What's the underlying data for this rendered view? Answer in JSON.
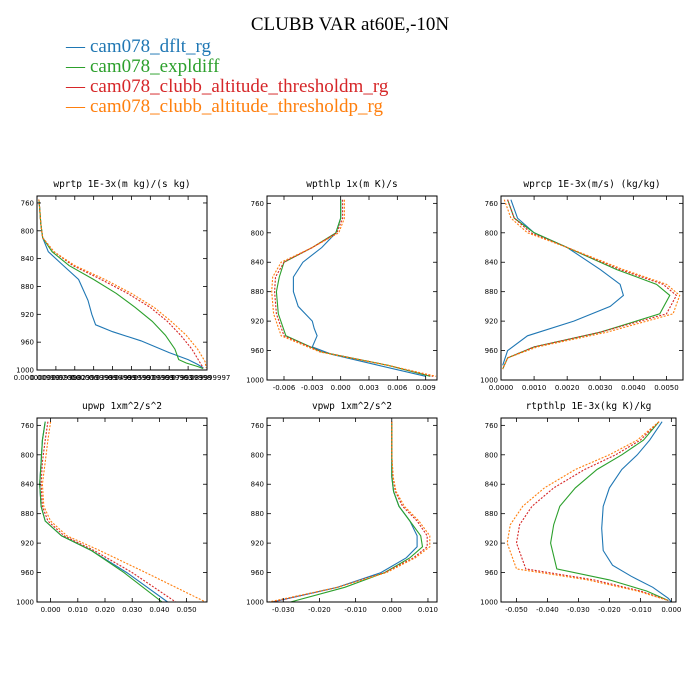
{
  "title": "CLUBB VAR at60E,-10N",
  "legend": [
    {
      "label": "cam078_dflt_rg",
      "color": "#1f77b4"
    },
    {
      "label": "cam078_expldiff",
      "color": "#2ca02c"
    },
    {
      "label": "cam078_clubb_altitude_thresholdm_rg",
      "color": "#d62728"
    },
    {
      "label": "cam078_clubb_altitude_thresholdp_rg",
      "color": "#ff7f0e"
    }
  ],
  "chart_data": [
    {
      "type": "line",
      "title": "wprtp  1E-3x(m kg)/(s kg)",
      "xlim": [
        0,
        0.09
      ],
      "ylim": [
        1000,
        750
      ],
      "yticks": [
        760,
        800,
        840,
        880,
        920,
        960,
        1000
      ],
      "xtick_labels": [
        "0.000000000",
        "0.0099999998",
        "0.020000000",
        "0.029999999",
        "0.039999999",
        "0.049999997",
        "0.059999999",
        "0.069999993",
        "0.079999998",
        "0.089999997"
      ],
      "series": [
        {
          "color": "#1f77b4",
          "x": [
            0.001,
            0.0015,
            0.002,
            0.003,
            0.006,
            0.014,
            0.022,
            0.027,
            0.029,
            0.031,
            0.04,
            0.055,
            0.07,
            0.08,
            0.085,
            0.088
          ],
          "y": [
            755,
            770,
            790,
            810,
            830,
            850,
            870,
            900,
            920,
            935,
            945,
            958,
            975,
            985,
            992,
            997
          ]
        },
        {
          "color": "#2ca02c",
          "x": [
            0.001,
            0.0015,
            0.002,
            0.003,
            0.008,
            0.017,
            0.03,
            0.042,
            0.052,
            0.061,
            0.068,
            0.073,
            0.075,
            0.079,
            0.085,
            0.088
          ],
          "y": [
            755,
            770,
            790,
            810,
            830,
            850,
            870,
            890,
            910,
            930,
            950,
            970,
            985,
            990,
            995,
            998
          ]
        },
        {
          "color": "#d62728",
          "x": [
            0.001,
            0.0015,
            0.002,
            0.003,
            0.009,
            0.019,
            0.034,
            0.048,
            0.06,
            0.069,
            0.076,
            0.082,
            0.086,
            0.088
          ],
          "y": [
            755,
            770,
            790,
            810,
            830,
            850,
            870,
            890,
            910,
            930,
            950,
            970,
            988,
            997
          ]
        },
        {
          "color": "#ff7f0e",
          "x": [
            0.001,
            0.0015,
            0.002,
            0.003,
            0.009,
            0.02,
            0.036,
            0.05,
            0.062,
            0.071,
            0.079,
            0.085,
            0.089,
            0.0895
          ],
          "y": [
            755,
            770,
            790,
            810,
            830,
            850,
            870,
            890,
            910,
            930,
            950,
            970,
            988,
            997
          ]
        }
      ]
    },
    {
      "type": "line",
      "title": "wpthlp  1x(m K)/s",
      "xlim": [
        -0.0078,
        0.0102
      ],
      "ylim": [
        1000,
        750
      ],
      "yticks": [
        760,
        800,
        840,
        880,
        920,
        960,
        1000
      ],
      "xticks": [
        -0.006,
        -0.003,
        0.0,
        0.003,
        0.006,
        0.009
      ],
      "xtick_labels": [
        "-0.006",
        "-0.003",
        "0.000",
        "0.003",
        "0.006",
        "0.009"
      ],
      "series": [
        {
          "color": "#1f77b4",
          "x": [
            0.0,
            0.0,
            -0.0005,
            -0.002,
            -0.004,
            -0.005,
            -0.005,
            -0.0045,
            -0.003,
            -0.0028,
            -0.0025,
            -0.003,
            -0.001,
            0.004,
            0.009
          ],
          "y": [
            755,
            780,
            800,
            820,
            840,
            860,
            880,
            900,
            920,
            930,
            940,
            955,
            965,
            980,
            995
          ]
        },
        {
          "color": "#2ca02c",
          "x": [
            0.0,
            0.0,
            -0.0005,
            -0.003,
            -0.006,
            -0.0065,
            -0.0068,
            -0.0066,
            -0.0058,
            -0.002,
            0.005,
            0.0095
          ],
          "y": [
            755,
            780,
            800,
            820,
            840,
            860,
            880,
            910,
            940,
            962,
            980,
            995
          ]
        },
        {
          "color": "#d62728",
          "x": [
            0.0002,
            0.0002,
            -0.0004,
            -0.003,
            -0.006,
            -0.0069,
            -0.007,
            -0.0068,
            -0.006,
            -0.002,
            0.005,
            0.0098
          ],
          "y": [
            755,
            780,
            800,
            820,
            840,
            860,
            880,
            910,
            940,
            962,
            980,
            995
          ]
        },
        {
          "color": "#ff7f0e",
          "x": [
            0.0004,
            0.0004,
            -0.0002,
            -0.003,
            -0.0063,
            -0.0072,
            -0.0073,
            -0.0071,
            -0.0063,
            -0.0022,
            0.005,
            0.0101
          ],
          "y": [
            755,
            780,
            800,
            820,
            840,
            860,
            880,
            910,
            940,
            962,
            980,
            995
          ]
        }
      ]
    },
    {
      "type": "line",
      "title": "wprcp  1E-3x(m/s) (kg/kg)",
      "xlim": [
        0,
        0.0055
      ],
      "ylim": [
        1000,
        750
      ],
      "yticks": [
        760,
        800,
        840,
        880,
        920,
        960,
        1000
      ],
      "xticks": [
        0.0,
        0.001,
        0.002,
        0.003,
        0.004,
        0.005
      ],
      "xtick_labels": [
        "0.0000",
        "0.0010",
        "0.0020",
        "0.0030",
        "0.0040",
        "0.0050"
      ],
      "series": [
        {
          "color": "#1f77b4",
          "x": [
            0.0003,
            0.0005,
            0.001,
            0.002,
            0.003,
            0.0036,
            0.0037,
            0.0033,
            0.0022,
            0.0008,
            0.0002,
            5e-05
          ],
          "y": [
            755,
            780,
            800,
            820,
            850,
            870,
            885,
            900,
            920,
            940,
            960,
            980
          ]
        },
        {
          "color": "#2ca02c",
          "x": [
            0.0002,
            0.0004,
            0.001,
            0.002,
            0.0035,
            0.0047,
            0.0051,
            0.0048,
            0.003,
            0.001,
            0.0002,
            5e-05
          ],
          "y": [
            755,
            780,
            800,
            820,
            850,
            870,
            885,
            910,
            935,
            955,
            970,
            985
          ]
        },
        {
          "color": "#d62728",
          "x": [
            0.0002,
            0.0004,
            0.0009,
            0.002,
            0.0036,
            0.0049,
            0.0053,
            0.005,
            0.003,
            0.001,
            0.0002,
            5e-05
          ],
          "y": [
            755,
            780,
            800,
            820,
            850,
            870,
            885,
            910,
            935,
            955,
            970,
            985
          ]
        },
        {
          "color": "#ff7f0e",
          "x": [
            0.0001,
            0.0003,
            0.0008,
            0.002,
            0.0037,
            0.005,
            0.0054,
            0.0052,
            0.0032,
            0.0011,
            0.0002,
            5e-05
          ],
          "y": [
            755,
            780,
            800,
            820,
            850,
            870,
            885,
            910,
            935,
            955,
            970,
            985
          ]
        }
      ]
    },
    {
      "type": "line",
      "title": "upwp  1xm^2/s^2",
      "xlim": [
        -0.005,
        0.0575
      ],
      "ylim": [
        1000,
        750
      ],
      "yticks": [
        760,
        800,
        840,
        880,
        920,
        960,
        1000
      ],
      "xticks": [
        0.0,
        0.01,
        0.02,
        0.03,
        0.04,
        0.05
      ],
      "xtick_labels": [
        "0.000",
        "0.010",
        "0.020",
        "0.030",
        "0.040",
        "0.050"
      ],
      "series": [
        {
          "color": "#1f77b4",
          "x": [
            -0.002,
            -0.003,
            -0.0035,
            -0.004,
            -0.0035,
            -0.002,
            0.004,
            0.015,
            0.028,
            0.043
          ],
          "y": [
            755,
            780,
            810,
            840,
            870,
            890,
            910,
            930,
            960,
            1000
          ]
        },
        {
          "color": "#2ca02c",
          "x": [
            -0.002,
            -0.003,
            -0.0035,
            -0.004,
            -0.0035,
            -0.002,
            0.004,
            0.015,
            0.027,
            0.041
          ],
          "y": [
            755,
            780,
            810,
            840,
            870,
            890,
            910,
            930,
            960,
            1000
          ]
        },
        {
          "color": "#d62728",
          "x": [
            -0.001,
            -0.002,
            -0.003,
            -0.0035,
            -0.003,
            -0.001,
            0.005,
            0.016,
            0.03,
            0.046
          ],
          "y": [
            755,
            780,
            810,
            840,
            870,
            890,
            910,
            930,
            960,
            1000
          ]
        },
        {
          "color": "#ff7f0e",
          "x": [
            0.0,
            -0.001,
            -0.002,
            -0.003,
            -0.0025,
            0.0,
            0.006,
            0.018,
            0.035,
            0.057
          ],
          "y": [
            755,
            780,
            810,
            840,
            870,
            890,
            910,
            930,
            960,
            1000
          ]
        }
      ]
    },
    {
      "type": "line",
      "title": "vpwp  1xm^2/s^2",
      "xlim": [
        -0.0345,
        0.0125
      ],
      "ylim": [
        1000,
        750
      ],
      "yticks": [
        760,
        800,
        840,
        880,
        920,
        960,
        1000
      ],
      "xticks": [
        -0.03,
        -0.02,
        -0.01,
        0.0,
        0.01
      ],
      "xtick_labels": [
        "-0.030",
        "-0.020",
        "-0.010",
        "0.000",
        "0.010"
      ],
      "series": [
        {
          "color": "#1f77b4",
          "x": [
            0.0,
            0.0,
            0.0,
            0.0005,
            0.002,
            0.005,
            0.007,
            0.007,
            0.004,
            -0.003,
            -0.015,
            -0.033
          ],
          "y": [
            755,
            800,
            830,
            850,
            870,
            890,
            910,
            925,
            940,
            960,
            980,
            1000
          ]
        },
        {
          "color": "#2ca02c",
          "x": [
            0.0,
            0.0,
            0.0,
            0.0005,
            0.002,
            0.005,
            0.008,
            0.0085,
            0.005,
            -0.002,
            -0.013,
            -0.028
          ],
          "y": [
            755,
            800,
            830,
            850,
            870,
            890,
            910,
            925,
            940,
            960,
            980,
            1000
          ]
        },
        {
          "color": "#d62728",
          "x": [
            0.0,
            0.0,
            0.0003,
            0.001,
            0.003,
            0.007,
            0.0098,
            0.0098,
            0.006,
            -0.002,
            -0.015,
            -0.033
          ],
          "y": [
            755,
            800,
            830,
            850,
            870,
            890,
            910,
            925,
            940,
            960,
            980,
            1000
          ]
        },
        {
          "color": "#ff7f0e",
          "x": [
            0.0,
            0.0,
            0.0004,
            0.0012,
            0.0035,
            0.0075,
            0.0105,
            0.0105,
            0.0065,
            -0.0015,
            -0.015,
            -0.034
          ],
          "y": [
            755,
            800,
            830,
            850,
            870,
            890,
            910,
            925,
            940,
            960,
            980,
            1000
          ]
        }
      ]
    },
    {
      "type": "line",
      "title": "rtpthlp  1E-3x(kg K)/kg",
      "xlim": [
        -0.055,
        0.0015
      ],
      "ylim": [
        1000,
        750
      ],
      "yticks": [
        760,
        800,
        840,
        880,
        920,
        960,
        1000
      ],
      "xticks": [
        -0.05,
        -0.04,
        -0.03,
        -0.02,
        -0.01,
        0.0
      ],
      "xtick_labels": [
        "-0.050",
        "-0.040",
        "-0.030",
        "-0.020",
        "-0.010",
        "0.000"
      ],
      "series": [
        {
          "color": "#1f77b4",
          "x": [
            -0.003,
            -0.007,
            -0.011,
            -0.016,
            -0.02,
            -0.022,
            -0.0225,
            -0.022,
            -0.019,
            -0.013,
            -0.006,
            -0.001,
            0.0
          ],
          "y": [
            755,
            780,
            800,
            820,
            845,
            870,
            900,
            930,
            950,
            965,
            980,
            995,
            1000
          ]
        },
        {
          "color": "#2ca02c",
          "x": [
            -0.004,
            -0.009,
            -0.016,
            -0.024,
            -0.031,
            -0.036,
            -0.038,
            -0.039,
            -0.037,
            -0.02,
            -0.008,
            -0.001
          ],
          "y": [
            755,
            780,
            800,
            820,
            845,
            870,
            895,
            920,
            955,
            970,
            985,
            998
          ]
        },
        {
          "color": "#d62728",
          "x": [
            -0.004,
            -0.01,
            -0.018,
            -0.028,
            -0.038,
            -0.045,
            -0.049,
            -0.05,
            -0.047,
            -0.025,
            -0.01,
            -0.001
          ],
          "y": [
            755,
            780,
            800,
            820,
            845,
            870,
            895,
            920,
            955,
            970,
            985,
            998
          ]
        },
        {
          "color": "#ff7f0e",
          "x": [
            -0.004,
            -0.011,
            -0.02,
            -0.031,
            -0.041,
            -0.048,
            -0.052,
            -0.053,
            -0.05,
            -0.027,
            -0.011,
            -0.001
          ],
          "y": [
            755,
            780,
            800,
            820,
            845,
            870,
            895,
            920,
            955,
            970,
            985,
            998
          ]
        }
      ]
    }
  ]
}
